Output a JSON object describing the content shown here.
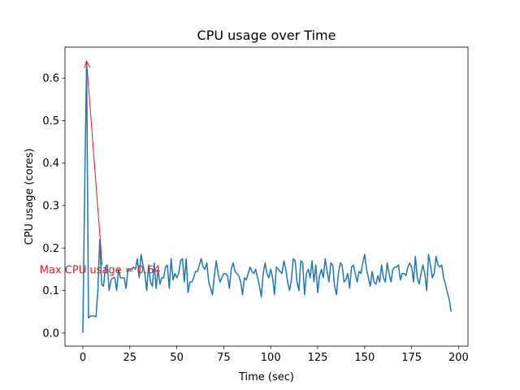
{
  "chart_data": {
    "type": "line",
    "title": "CPU usage over Time",
    "xlabel": "Time (sec)",
    "ylabel": "CPU usage (cores)",
    "x": [
      0,
      1,
      2,
      3,
      4,
      5,
      6,
      7,
      8,
      9,
      10,
      11,
      12,
      13,
      14,
      15,
      16,
      17,
      18,
      19,
      20,
      21,
      22,
      23,
      24,
      25,
      26,
      27,
      28,
      29,
      30,
      31,
      32,
      33,
      34,
      35,
      36,
      37,
      38,
      39,
      40,
      41,
      42,
      43,
      44,
      45,
      46,
      47,
      48,
      49,
      50,
      51,
      52,
      53,
      54,
      55,
      56,
      57,
      58,
      59,
      60,
      61,
      62,
      63,
      64,
      65,
      66,
      67,
      68,
      69,
      70,
      71,
      72,
      73,
      74,
      75,
      76,
      77,
      78,
      79,
      80,
      81,
      82,
      83,
      84,
      85,
      86,
      87,
      88,
      89,
      90,
      91,
      92,
      93,
      94,
      95,
      96,
      97,
      98,
      99,
      100,
      101,
      102,
      103,
      104,
      105,
      106,
      107,
      108,
      109,
      110,
      111,
      112,
      113,
      114,
      115,
      116,
      117,
      118,
      119,
      120,
      121,
      122,
      123,
      124,
      125,
      126,
      127,
      128,
      129,
      130,
      131,
      132,
      133,
      134,
      135,
      136,
      137,
      138,
      139,
      140,
      141,
      142,
      143,
      144,
      145,
      146,
      147,
      148,
      149,
      150,
      151,
      152,
      153,
      154,
      155,
      156,
      157,
      158,
      159,
      160,
      161,
      162,
      163,
      164,
      165,
      166,
      167,
      168,
      169,
      170,
      171,
      172,
      173,
      174,
      175,
      176,
      177,
      178,
      179,
      180,
      181,
      182,
      183,
      184,
      185,
      186,
      187,
      188,
      189,
      190,
      191,
      192,
      193,
      194,
      195,
      196
    ],
    "series": [
      {
        "name": "CPU usage",
        "color": "#1f77b4",
        "values": [
          0,
          0.35,
          0.64,
          0.035,
          0.04,
          0.04,
          0.04,
          0.038,
          0.1,
          0.22,
          0.115,
          0.11,
          0.155,
          0.16,
          0.1,
          0.125,
          0.13,
          0.13,
          0.1,
          0.15,
          0.13,
          0.13,
          0.13,
          0.105,
          0.15,
          0.15,
          0.15,
          0.155,
          0.15,
          0.175,
          0.13,
          0.185,
          0.16,
          0.14,
          0.1,
          0.16,
          0.12,
          0.11,
          0.165,
          0.105,
          0.15,
          0.115,
          0.13,
          0.13,
          0.155,
          0.16,
          0.105,
          0.175,
          0.125,
          0.14,
          0.13,
          0.14,
          0.17,
          0.175,
          0.12,
          0.175,
          0.095,
          0.12,
          0.12,
          0.13,
          0.145,
          0.145,
          0.16,
          0.175,
          0.155,
          0.15,
          0.165,
          0.12,
          0.105,
          0.09,
          0.135,
          0.17,
          0.14,
          0.12,
          0.13,
          0.14,
          0.14,
          0.135,
          0.105,
          0.15,
          0.165,
          0.145,
          0.14,
          0.135,
          0.12,
          0.09,
          0.13,
          0.125,
          0.14,
          0.155,
          0.145,
          0.14,
          0.15,
          0.13,
          0.11,
          0.085,
          0.14,
          0.165,
          0.14,
          0.13,
          0.15,
          0.13,
          0.09,
          0.155,
          0.15,
          0.145,
          0.14,
          0.17,
          0.15,
          0.12,
          0.1,
          0.125,
          0.175,
          0.17,
          0.12,
          0.1,
          0.17,
          0.165,
          0.09,
          0.14,
          0.15,
          0.13,
          0.17,
          0.12,
          0.16,
          0.095,
          0.135,
          0.15,
          0.13,
          0.175,
          0.145,
          0.12,
          0.165,
          0.16,
          0.11,
          0.09,
          0.14,
          0.165,
          0.16,
          0.12,
          0.125,
          0.14,
          0.105,
          0.155,
          0.16,
          0.14,
          0.12,
          0.145,
          0.14,
          0.165,
          0.185,
          0.15,
          0.13,
          0.11,
          0.145,
          0.12,
          0.115,
          0.135,
          0.12,
          0.16,
          0.13,
          0.12,
          0.165,
          0.14,
          0.12,
          0.15,
          0.155,
          0.155,
          0.16,
          0.125,
          0.14,
          0.14,
          0.135,
          0.155,
          0.165,
          0.155,
          0.12,
          0.18,
          0.13,
          0.115,
          0.14,
          0.16,
          0.14,
          0.1,
          0.185,
          0.16,
          0.13,
          0.14,
          0.18,
          0.16,
          0.155,
          0.16,
          0.13,
          0.115,
          0.095,
          0.08,
          0.05
        ]
      }
    ],
    "xlim": [
      -9.5,
      205
    ],
    "ylim": [
      -0.031,
      0.673
    ],
    "xticks": [
      0,
      25,
      50,
      75,
      100,
      125,
      150,
      175,
      200
    ],
    "yticks": [
      {
        "value": 0,
        "label": "0.0"
      },
      0.1,
      0.2,
      0.3,
      0.4,
      0.5,
      0.6
    ],
    "annotation": {
      "text": "Max CPU usage = 0.64",
      "color": "#e41a1c",
      "xy": [
        2,
        0.64
      ],
      "xytext": [
        -23,
        0.14
      ]
    }
  }
}
